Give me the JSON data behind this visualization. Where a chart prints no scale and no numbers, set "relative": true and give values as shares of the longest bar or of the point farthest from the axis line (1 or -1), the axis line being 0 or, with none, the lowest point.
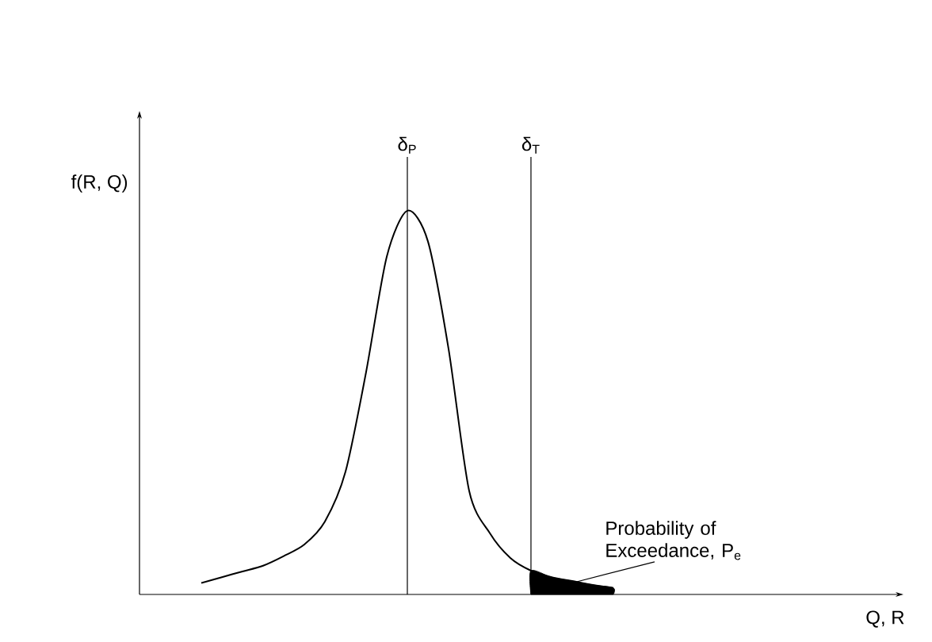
{
  "chart_data": {
    "type": "line",
    "relative": true,
    "ylabel": "f(R, Q)",
    "tick_labels": "x",
    "categories": [
      null,
      null,
      null,
      null,
      null,
      null,
      null,
      null,
      null,
      null,
      "δ$_{P}$",
      null,
      null,
      null,
      null,
      null,
      "δ$_{T}$",
      null,
      null,
      null,
      null
    ],
    "series": [
      {
        "color": "#000000",
        "values": [
          0.03,
          0.045,
          0.06,
          0.075,
          0.1,
          0.13,
          0.19,
          0.32,
          0.58,
          0.88,
          1,
          0.92,
          0.64,
          0.27,
          0.16,
          0.095,
          0.062,
          0.045,
          0.035,
          0.025,
          0.017
        ]
      },
      {
        "type": "area",
        "color": "#000000",
        "values": [
          null,
          null,
          null,
          null,
          null,
          null,
          null,
          null,
          null,
          null,
          null,
          null,
          null,
          null,
          null,
          null,
          0.062,
          0.045,
          0.035,
          0.025,
          0.017
        ]
      }
    ],
    "annotations": [
      "Probability of Exceedance, P$_{e}$",
      "Q, R"
    ]
  }
}
